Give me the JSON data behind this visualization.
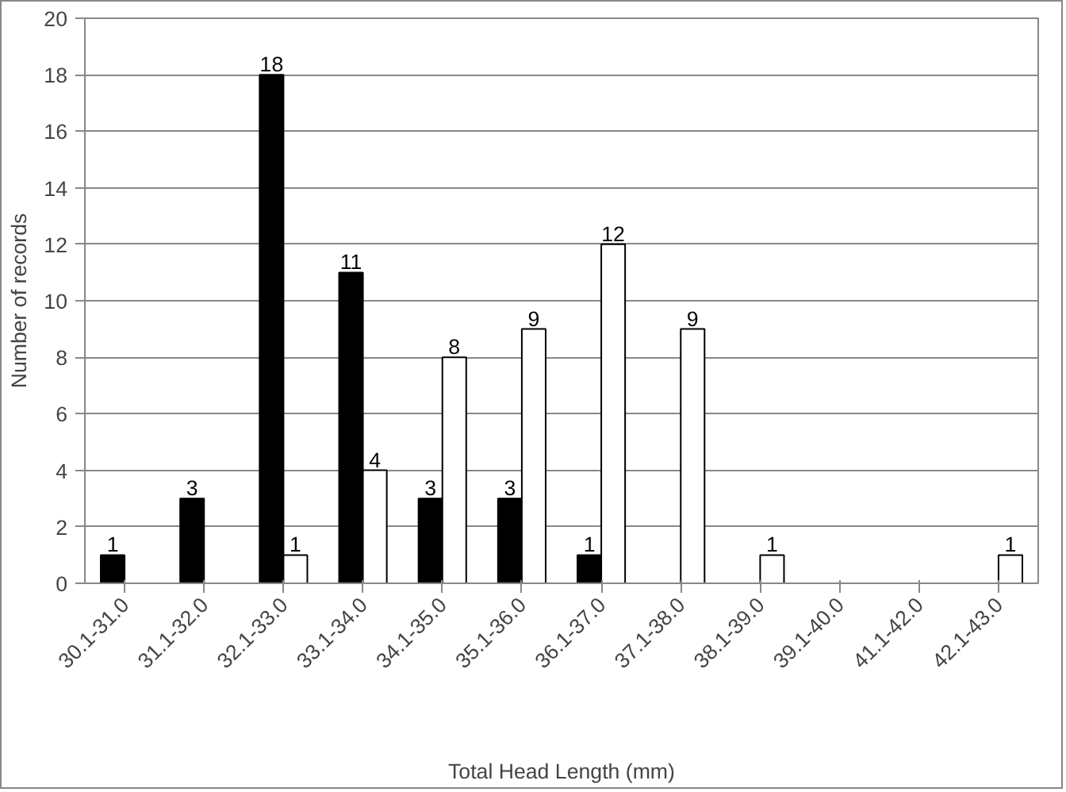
{
  "chart_data": {
    "type": "bar",
    "xlabel": "Total Head Length (mm)",
    "ylabel": "Number of records",
    "categories": [
      "30.1-31.0",
      "31.1-32.0",
      "32.1-33.0",
      "33.1-34.0",
      "34.1-35.0",
      "35.1-36.0",
      "36.1-37.0",
      "37.1-38.0",
      "38.1-39.0",
      "39.1-40.0",
      "41.1-42.0",
      "42.1-43.0"
    ],
    "series": [
      {
        "color": "#000000",
        "values": [
          1,
          3,
          18,
          11,
          3,
          3,
          1,
          0,
          0,
          0,
          0,
          0
        ],
        "value_labels": [
          "1",
          "3",
          "18",
          "11",
          "3",
          "3",
          "1",
          null,
          null,
          null,
          null,
          null
        ]
      },
      {
        "color": "#ffffff",
        "values": [
          0,
          0,
          1,
          4,
          8,
          9,
          12,
          9,
          1,
          0,
          0,
          1
        ],
        "value_labels": [
          null,
          null,
          "1",
          "4",
          "8",
          "9",
          "12",
          "9",
          "1",
          null,
          null,
          "1"
        ]
      }
    ],
    "ylim": [
      0,
      20
    ],
    "yticks": [
      0,
      2,
      4,
      6,
      8,
      10,
      12,
      14,
      16,
      18,
      20
    ],
    "grid": "y"
  }
}
